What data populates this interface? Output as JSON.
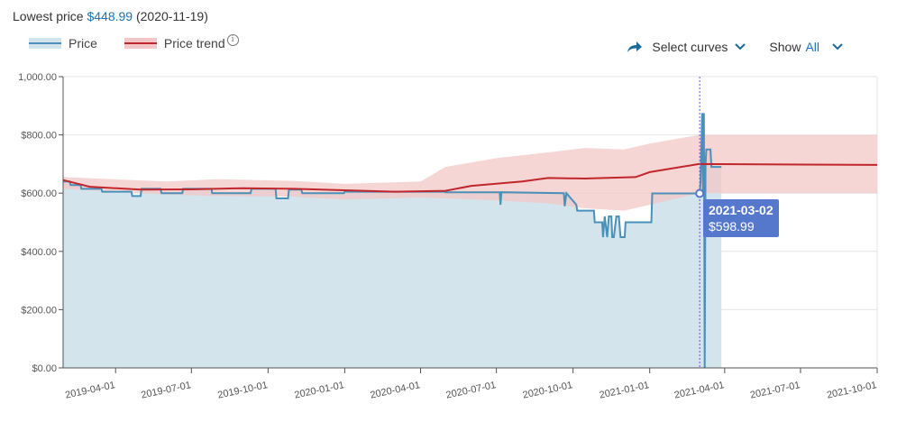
{
  "header": {
    "prefix": "Lowest price ",
    "price": "$448.99",
    "date": " (2020-11-19)"
  },
  "legend": {
    "price_label": "Price",
    "trend_label": "Price trend",
    "info_icon": "i"
  },
  "controls": {
    "select_curves": "Select curves",
    "show_label": "Show",
    "show_value": "All"
  },
  "tooltip": {
    "date": "2021-03-02",
    "price": "$598.99"
  },
  "colors": {
    "price_line": "#4a90b8",
    "price_fill": "#d3e4ec",
    "trend_line": "#c0272d",
    "trend_band": "#f3c7c7",
    "tooltip_bg": "#5577cc",
    "accent": "#1a73b8"
  },
  "chart_data": {
    "type": "line",
    "ylim": [
      0,
      1000
    ],
    "y_ticks": [
      "$0.00",
      "$200.00",
      "$400.00",
      "$600.00",
      "$800.00",
      "1,000.00"
    ],
    "y_tick_values": [
      0,
      200,
      400,
      600,
      800,
      1000
    ],
    "x_range": [
      "2019-01-28",
      "2021-10-01"
    ],
    "x_ticks": [
      "2019-04-01",
      "2019-07-01",
      "2019-10-01",
      "2020-01-01",
      "2020-04-01",
      "2020-07-01",
      "2020-10-01",
      "2021-01-01",
      "2021-04-01",
      "2021-07-01",
      "2021-10-01"
    ],
    "grid": true,
    "series": [
      {
        "name": "Price",
        "points": [
          [
            "2019-01-28",
            640
          ],
          [
            "2019-02-05",
            640
          ],
          [
            "2019-02-06",
            628
          ],
          [
            "2019-02-18",
            628
          ],
          [
            "2019-02-19",
            615
          ],
          [
            "2019-03-15",
            615
          ],
          [
            "2019-03-16",
            605
          ],
          [
            "2019-04-20",
            605
          ],
          [
            "2019-04-21",
            590
          ],
          [
            "2019-05-01",
            590
          ],
          [
            "2019-05-02",
            615
          ],
          [
            "2019-05-25",
            615
          ],
          [
            "2019-05-26",
            600
          ],
          [
            "2019-06-20",
            600
          ],
          [
            "2019-06-21",
            615
          ],
          [
            "2019-07-25",
            615
          ],
          [
            "2019-07-26",
            600
          ],
          [
            "2019-09-10",
            600
          ],
          [
            "2019-09-11",
            615
          ],
          [
            "2019-10-10",
            615
          ],
          [
            "2019-10-11",
            582
          ],
          [
            "2019-10-25",
            582
          ],
          [
            "2019-10-26",
            612
          ],
          [
            "2019-11-10",
            612
          ],
          [
            "2019-11-11",
            600
          ],
          [
            "2019-12-31",
            600
          ],
          [
            "2020-01-01",
            605
          ],
          [
            "2020-04-30",
            605
          ],
          [
            "2020-05-01",
            603
          ],
          [
            "2020-07-05",
            603
          ],
          [
            "2020-07-06",
            560
          ],
          [
            "2020-07-07",
            603
          ],
          [
            "2020-09-20",
            600
          ],
          [
            "2020-09-21",
            555
          ],
          [
            "2020-09-23",
            600
          ],
          [
            "2020-10-05",
            560
          ],
          [
            "2020-10-06",
            540
          ],
          [
            "2020-10-26",
            540
          ],
          [
            "2020-10-27",
            500
          ],
          [
            "2020-11-05",
            500
          ],
          [
            "2020-11-06",
            448.99
          ],
          [
            "2020-11-08",
            520
          ],
          [
            "2020-11-11",
            448.99
          ],
          [
            "2020-11-13",
            520
          ],
          [
            "2020-11-16",
            520
          ],
          [
            "2020-11-17",
            448.99
          ],
          [
            "2020-11-19",
            448.99
          ],
          [
            "2020-11-22",
            520
          ],
          [
            "2020-11-25",
            520
          ],
          [
            "2020-11-27",
            448.99
          ],
          [
            "2020-12-02",
            448.99
          ],
          [
            "2020-12-03",
            500
          ],
          [
            "2021-01-03",
            500
          ],
          [
            "2021-01-04",
            598.99
          ],
          [
            "2021-03-02",
            598.99
          ],
          [
            "2021-03-03",
            640
          ],
          [
            "2021-03-05",
            875
          ],
          [
            "2021-03-06",
            598.99
          ],
          [
            "2021-03-07",
            875
          ],
          [
            "2021-03-08",
            0
          ],
          [
            "2021-03-09",
            700
          ],
          [
            "2021-03-10",
            750
          ],
          [
            "2021-03-15",
            750
          ],
          [
            "2021-03-16",
            690
          ],
          [
            "2021-03-28",
            690
          ]
        ]
      },
      {
        "name": "Price trend",
        "points": [
          [
            "2019-01-28",
            645
          ],
          [
            "2019-03-01",
            622
          ],
          [
            "2019-05-01",
            612
          ],
          [
            "2019-07-01",
            613
          ],
          [
            "2019-09-01",
            617
          ],
          [
            "2019-11-01",
            615
          ],
          [
            "2020-01-01",
            610
          ],
          [
            "2020-03-01",
            605
          ],
          [
            "2020-05-01",
            608
          ],
          [
            "2020-06-01",
            625
          ],
          [
            "2020-08-01",
            640
          ],
          [
            "2020-09-01",
            652
          ],
          [
            "2020-10-15",
            650
          ],
          [
            "2020-12-15",
            655
          ],
          [
            "2021-01-01",
            672
          ],
          [
            "2021-03-01",
            700
          ],
          [
            "2021-10-01",
            697
          ]
        ],
        "band": [
          [
            "2019-01-28",
            615,
            655
          ],
          [
            "2019-06-01",
            595,
            640
          ],
          [
            "2019-08-01",
            590,
            648
          ],
          [
            "2019-11-01",
            588,
            642
          ],
          [
            "2020-01-01",
            578,
            632
          ],
          [
            "2020-04-01",
            585,
            640
          ],
          [
            "2020-05-01",
            582,
            690
          ],
          [
            "2020-07-01",
            575,
            720
          ],
          [
            "2020-09-01",
            565,
            740
          ],
          [
            "2020-10-15",
            548,
            755
          ],
          [
            "2020-12-01",
            540,
            750
          ],
          [
            "2021-01-01",
            560,
            770
          ],
          [
            "2021-03-01",
            600,
            800
          ],
          [
            "2021-10-01",
            600,
            800
          ]
        ]
      }
    ],
    "hover_date": "2021-03-02"
  }
}
